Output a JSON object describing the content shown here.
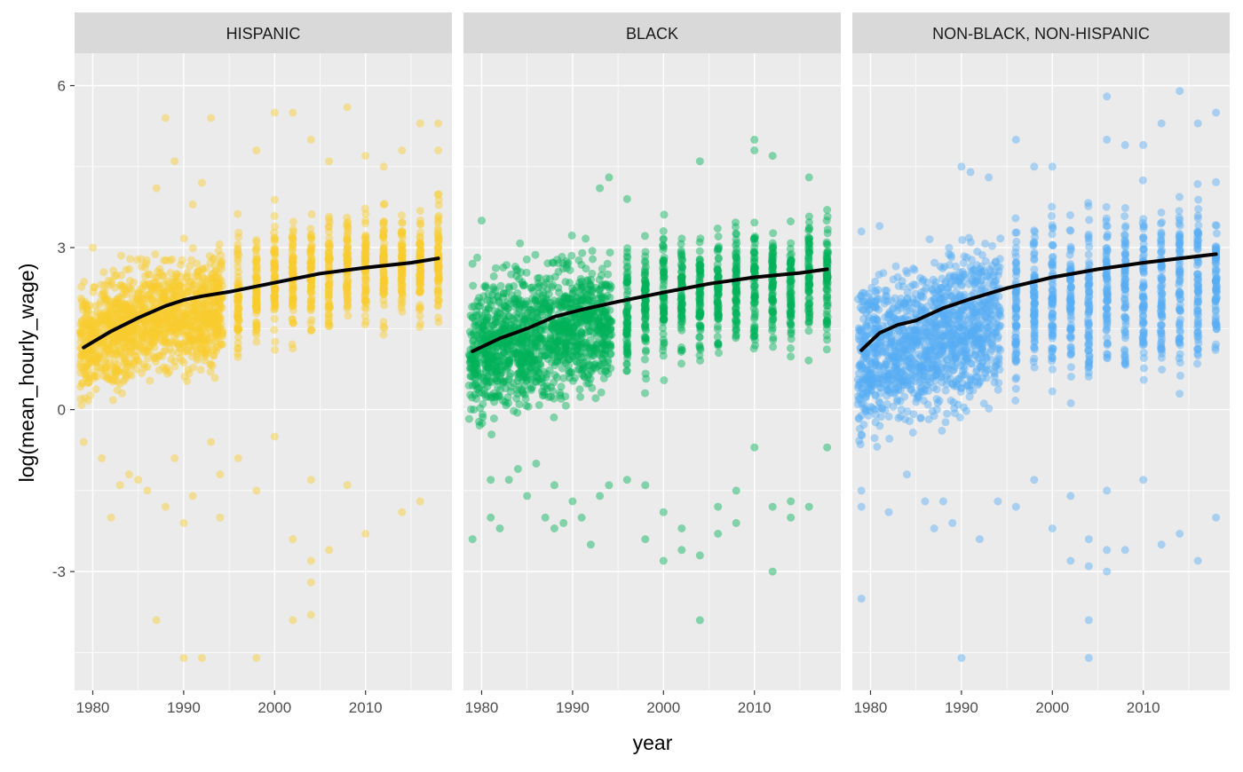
{
  "chart_data": {
    "type": "scatter",
    "xlabel": "year",
    "ylabel": "log(mean_hourly_wage)",
    "xlim": [
      1978,
      2019.5
    ],
    "ylim": [
      -5.2,
      6.6
    ],
    "x_ticks": [
      1980,
      1990,
      2000,
      2010
    ],
    "y_ticks": [
      -3,
      0,
      3,
      6
    ],
    "x_tick_labels": [
      "1980",
      "1990",
      "2000",
      "2010"
    ],
    "y_tick_labels": [
      "-3",
      "0",
      "3",
      "6"
    ],
    "grid": true,
    "background": "#EBEBEB",
    "strip_color": "#D9D9D9",
    "trend_color": "#000000",
    "panels": [
      {
        "strip_label": "HISPANIC",
        "color": "#F8CB2E",
        "band": {
          "early": [
            [
              1979,
              -0.1,
              2.5
            ],
            [
              1982,
              0.1,
              2.7
            ],
            [
              1985,
              0.3,
              2.9
            ],
            [
              1988,
              0.4,
              3.1
            ],
            [
              1991,
              0.4,
              3.2
            ],
            [
              1994,
              0.5,
              3.3
            ]
          ],
          "late": [
            [
              1996,
              0.7,
              3.6
            ],
            [
              2000,
              0.9,
              3.8
            ],
            [
              2004,
              1.0,
              3.9
            ],
            [
              2008,
              1.1,
              4.1
            ],
            [
              2012,
              1.2,
              4.1
            ],
            [
              2016,
              1.3,
              4.1
            ],
            [
              2018,
              1.4,
              4.2
            ]
          ]
        },
        "outliers": [
          [
            1979,
            -0.6
          ],
          [
            1980,
            3.0
          ],
          [
            1981,
            -0.9
          ],
          [
            1982,
            -2.0
          ],
          [
            1983,
            -1.4
          ],
          [
            1984,
            -1.2
          ],
          [
            1985,
            -1.3
          ],
          [
            1986,
            -1.5
          ],
          [
            1987,
            -3.9
          ],
          [
            1987,
            4.1
          ],
          [
            1988,
            5.4
          ],
          [
            1988,
            -1.8
          ],
          [
            1989,
            4.6
          ],
          [
            1989,
            -0.9
          ],
          [
            1990,
            -4.6
          ],
          [
            1990,
            -2.1
          ],
          [
            1991,
            3.8
          ],
          [
            1991,
            -1.6
          ],
          [
            1992,
            -4.6
          ],
          [
            1992,
            4.2
          ],
          [
            1993,
            5.4
          ],
          [
            1993,
            -0.6
          ],
          [
            1994,
            -2.0
          ],
          [
            1994,
            -1.2
          ],
          [
            1996,
            -0.9
          ],
          [
            1998,
            -4.6
          ],
          [
            1998,
            4.8
          ],
          [
            1998,
            -1.5
          ],
          [
            2000,
            5.5
          ],
          [
            2000,
            -0.5
          ],
          [
            2002,
            5.5
          ],
          [
            2002,
            -3.9
          ],
          [
            2002,
            -2.4
          ],
          [
            2004,
            -3.8
          ],
          [
            2004,
            -2.8
          ],
          [
            2004,
            -3.2
          ],
          [
            2004,
            5.0
          ],
          [
            2004,
            -1.3
          ],
          [
            2006,
            -2.6
          ],
          [
            2006,
            4.6
          ],
          [
            2008,
            5.6
          ],
          [
            2008,
            -1.4
          ],
          [
            2010,
            -2.3
          ],
          [
            2010,
            4.7
          ],
          [
            2012,
            4.5
          ],
          [
            2014,
            4.8
          ],
          [
            2014,
            -1.9
          ],
          [
            2016,
            -1.7
          ],
          [
            2016,
            5.3
          ],
          [
            2018,
            5.3
          ],
          [
            2018,
            4.8
          ]
        ],
        "trend": [
          [
            1979,
            1.15
          ],
          [
            1982,
            1.45
          ],
          [
            1985,
            1.7
          ],
          [
            1988,
            1.92
          ],
          [
            1990,
            2.03
          ],
          [
            1992,
            2.1
          ],
          [
            1995,
            2.18
          ],
          [
            2000,
            2.35
          ],
          [
            2005,
            2.52
          ],
          [
            2010,
            2.63
          ],
          [
            2015,
            2.72
          ],
          [
            2018,
            2.8
          ]
        ]
      },
      {
        "strip_label": "BLACK",
        "color": "#00B159",
        "band": {
          "early": [
            [
              1979,
              -0.6,
              2.7
            ],
            [
              1982,
              -0.4,
              2.8
            ],
            [
              1985,
              -0.3,
              3.0
            ],
            [
              1988,
              -0.2,
              3.1
            ],
            [
              1991,
              -0.1,
              3.2
            ],
            [
              1994,
              0.0,
              3.2
            ]
          ],
          "late": [
            [
              1996,
              0.2,
              3.5
            ],
            [
              2000,
              0.4,
              3.7
            ],
            [
              2004,
              0.5,
              3.8
            ],
            [
              2008,
              0.6,
              3.9
            ],
            [
              2012,
              0.7,
              3.9
            ],
            [
              2016,
              0.8,
              4.0
            ],
            [
              2018,
              0.8,
              4.0
            ]
          ]
        },
        "outliers": [
          [
            1979,
            -2.4
          ],
          [
            1979,
            2.7
          ],
          [
            1980,
            3.5
          ],
          [
            1981,
            -2.0
          ],
          [
            1981,
            -1.3
          ],
          [
            1982,
            -2.2
          ],
          [
            1983,
            -1.3
          ],
          [
            1984,
            -1.1
          ],
          [
            1985,
            -1.6
          ],
          [
            1986,
            -1.0
          ],
          [
            1987,
            -2.0
          ],
          [
            1988,
            -1.4
          ],
          [
            1988,
            -2.2
          ],
          [
            1989,
            -2.1
          ],
          [
            1990,
            -1.7
          ],
          [
            1991,
            -2.0
          ],
          [
            1992,
            -2.5
          ],
          [
            1993,
            -1.6
          ],
          [
            1993,
            4.1
          ],
          [
            1994,
            -1.4
          ],
          [
            1994,
            4.3
          ],
          [
            1996,
            -1.3
          ],
          [
            1996,
            3.9
          ],
          [
            1998,
            -2.4
          ],
          [
            1998,
            -1.4
          ],
          [
            2000,
            -2.8
          ],
          [
            2000,
            -1.9
          ],
          [
            2002,
            -2.6
          ],
          [
            2002,
            -2.2
          ],
          [
            2004,
            -3.9
          ],
          [
            2004,
            -2.7
          ],
          [
            2004,
            4.6
          ],
          [
            2006,
            -2.3
          ],
          [
            2006,
            -1.8
          ],
          [
            2008,
            -2.1
          ],
          [
            2008,
            -1.5
          ],
          [
            2010,
            5.0
          ],
          [
            2010,
            4.8
          ],
          [
            2010,
            -0.7
          ],
          [
            2012,
            -3.0
          ],
          [
            2012,
            -1.8
          ],
          [
            2012,
            4.7
          ],
          [
            2014,
            -2.0
          ],
          [
            2014,
            -1.7
          ],
          [
            2016,
            -1.8
          ],
          [
            2016,
            4.3
          ],
          [
            2018,
            -0.7
          ]
        ],
        "trend": [
          [
            1979,
            1.08
          ],
          [
            1982,
            1.32
          ],
          [
            1985,
            1.5
          ],
          [
            1988,
            1.72
          ],
          [
            1991,
            1.85
          ],
          [
            1995,
            2.0
          ],
          [
            2000,
            2.17
          ],
          [
            2005,
            2.33
          ],
          [
            2010,
            2.45
          ],
          [
            2015,
            2.53
          ],
          [
            2018,
            2.6
          ]
        ]
      },
      {
        "strip_label": "NON-BLACK, NON-HISPANIC",
        "color": "#56ADF5",
        "band": {
          "early": [
            [
              1979,
              -0.9,
              2.7
            ],
            [
              1982,
              -0.7,
              2.9
            ],
            [
              1985,
              -0.6,
              3.1
            ],
            [
              1988,
              -0.5,
              3.3
            ],
            [
              1991,
              -0.3,
              3.5
            ],
            [
              1994,
              -0.2,
              3.6
            ]
          ],
          "late": [
            [
              1996,
              -0.2,
              3.9
            ],
            [
              2000,
              0.0,
              4.0
            ],
            [
              2004,
              0.0,
              4.2
            ],
            [
              2008,
              0.1,
              4.3
            ],
            [
              2012,
              0.1,
              4.4
            ],
            [
              2016,
              0.2,
              4.5
            ],
            [
              2018,
              0.2,
              4.5
            ]
          ]
        },
        "outliers": [
          [
            1979,
            -3.5
          ],
          [
            1979,
            -1.8
          ],
          [
            1979,
            -1.5
          ],
          [
            1979,
            3.3
          ],
          [
            1981,
            3.4
          ],
          [
            1982,
            -1.9
          ],
          [
            1984,
            -1.2
          ],
          [
            1986,
            -1.7
          ],
          [
            1987,
            -2.2
          ],
          [
            1988,
            -1.7
          ],
          [
            1989,
            -2.1
          ],
          [
            1990,
            -4.6
          ],
          [
            1990,
            4.5
          ],
          [
            1991,
            4.4
          ],
          [
            1992,
            -2.4
          ],
          [
            1993,
            4.3
          ],
          [
            1994,
            -1.7
          ],
          [
            1996,
            5.0
          ],
          [
            1996,
            -1.8
          ],
          [
            1998,
            -1.3
          ],
          [
            1998,
            4.5
          ],
          [
            2000,
            -2.2
          ],
          [
            2000,
            4.5
          ],
          [
            2002,
            -2.8
          ],
          [
            2002,
            -1.6
          ],
          [
            2004,
            -4.6
          ],
          [
            2004,
            -3.9
          ],
          [
            2004,
            -2.9
          ],
          [
            2004,
            -2.4
          ],
          [
            2006,
            -3.0
          ],
          [
            2006,
            -2.6
          ],
          [
            2006,
            -1.5
          ],
          [
            2006,
            5.8
          ],
          [
            2006,
            5.0
          ],
          [
            2008,
            -2.6
          ],
          [
            2008,
            4.9
          ],
          [
            2010,
            -1.3
          ],
          [
            2010,
            4.9
          ],
          [
            2012,
            -2.5
          ],
          [
            2012,
            5.3
          ],
          [
            2014,
            -2.3
          ],
          [
            2014,
            5.9
          ],
          [
            2016,
            -2.8
          ],
          [
            2016,
            5.3
          ],
          [
            2018,
            -2.0
          ],
          [
            2018,
            5.5
          ]
        ],
        "trend": [
          [
            1979,
            1.1
          ],
          [
            1981,
            1.42
          ],
          [
            1983,
            1.57
          ],
          [
            1985,
            1.65
          ],
          [
            1988,
            1.88
          ],
          [
            1991,
            2.05
          ],
          [
            1995,
            2.25
          ],
          [
            2000,
            2.45
          ],
          [
            2005,
            2.6
          ],
          [
            2010,
            2.72
          ],
          [
            2015,
            2.82
          ],
          [
            2018,
            2.88
          ]
        ]
      }
    ]
  }
}
